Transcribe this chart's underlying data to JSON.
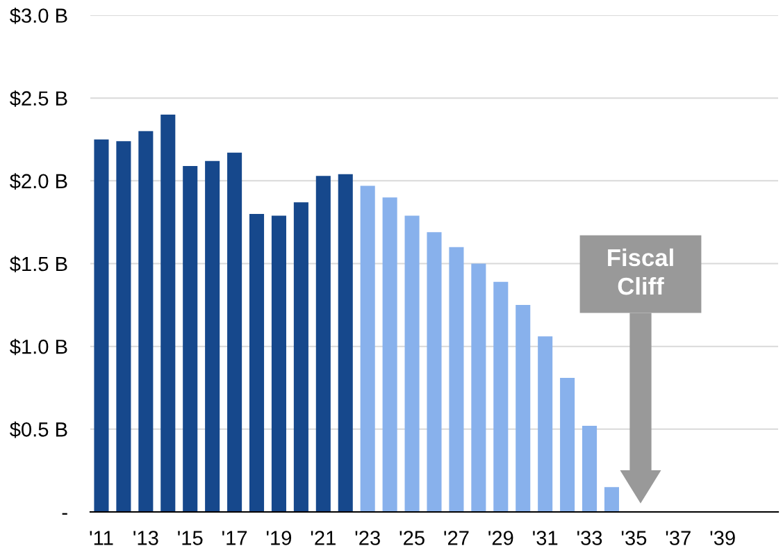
{
  "chart_data": {
    "type": "bar",
    "categories": [
      "'11",
      null,
      "'13",
      null,
      "'15",
      null,
      "'17",
      null,
      "'19",
      null,
      "'21",
      null,
      "'23",
      null,
      "'25",
      null,
      "'27",
      null,
      "'29",
      null,
      "'31",
      null,
      "'33",
      null,
      "'35",
      null,
      "'37",
      null,
      "'39",
      null,
      null
    ],
    "values": [
      2.25,
      2.24,
      2.3,
      2.4,
      2.09,
      2.12,
      2.17,
      1.8,
      1.79,
      1.87,
      2.03,
      2.04,
      1.97,
      1.9,
      1.79,
      1.69,
      1.6,
      1.5,
      1.39,
      1.25,
      1.06,
      0.81,
      0.52,
      0.15,
      null,
      null,
      null,
      null,
      null,
      null,
      null
    ],
    "colors": [
      "#16488c",
      "#16488c",
      "#16488c",
      "#16488c",
      "#16488c",
      "#16488c",
      "#16488c",
      "#16488c",
      "#16488c",
      "#16488c",
      "#16488c",
      "#16488c",
      "#88b1ec",
      "#88b1ec",
      "#88b1ec",
      "#88b1ec",
      "#88b1ec",
      "#88b1ec",
      "#88b1ec",
      "#88b1ec",
      "#88b1ec",
      "#88b1ec",
      "#88b1ec",
      "#88b1ec",
      "#88b1ec",
      "#88b1ec",
      "#88b1ec",
      "#88b1ec",
      "#88b1ec",
      "#88b1ec",
      "#88b1ec"
    ],
    "ylim": [
      0,
      3.0
    ],
    "yticks": [
      {
        "value": 0,
        "label": "-"
      },
      {
        "value": 0.5,
        "label": "$0.5 B"
      },
      {
        "value": 1.0,
        "label": "$1.0 B"
      },
      {
        "value": 1.5,
        "label": "$1.5 B"
      },
      {
        "value": 2.0,
        "label": "$2.0 B"
      },
      {
        "value": 2.5,
        "label": "$2.5 B"
      },
      {
        "value": 3.0,
        "label": "$3.0 B"
      }
    ],
    "grid": "y",
    "annotations": [
      "Fiscal Cliff"
    ]
  }
}
